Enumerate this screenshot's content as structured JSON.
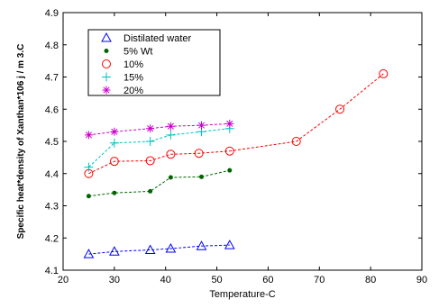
{
  "chart_data": {
    "type": "line",
    "xlabel": "Temperature-C",
    "ylabel": "Specific heat*density of Xanthan*106  j / m 3.C",
    "xlim": [
      20,
      90
    ],
    "ylim": [
      4.1,
      4.9
    ],
    "xticks": [
      "20",
      "30",
      "40",
      "50",
      "60",
      "70",
      "80",
      "90"
    ],
    "yticks": [
      "4.1",
      "4.2",
      "4.3",
      "4.4",
      "4.5",
      "4.6",
      "4.7",
      "4.8",
      "4.9"
    ],
    "grid": false,
    "legend_position": "top-left",
    "series": [
      {
        "name": "Distilated water",
        "color": "#0000ff",
        "marker": "triangle",
        "x": [
          25,
          30,
          37,
          41,
          47,
          52.5
        ],
        "y": [
          4.15,
          4.158,
          4.163,
          4.167,
          4.175,
          4.178
        ]
      },
      {
        "name": "5%  Wt",
        "color": "#006400",
        "marker": "dot",
        "x": [
          25,
          30,
          37,
          41,
          47,
          52.5
        ],
        "y": [
          4.33,
          4.34,
          4.345,
          4.388,
          4.39,
          4.41
        ]
      },
      {
        "name": "10%",
        "color": "#ff0000",
        "marker": "circle",
        "x": [
          25,
          30,
          37,
          41,
          46.5,
          52.5,
          65.5,
          74,
          82.5
        ],
        "y": [
          4.4,
          4.438,
          4.44,
          4.46,
          4.463,
          4.47,
          4.5,
          4.6,
          4.71
        ]
      },
      {
        "name": "15%",
        "color": "#00c0c0",
        "marker": "plus",
        "x": [
          25,
          30,
          37,
          41,
          47,
          52.5
        ],
        "y": [
          4.42,
          4.495,
          4.5,
          4.52,
          4.53,
          4.54
        ]
      },
      {
        "name": "20%",
        "color": "#cc00cc",
        "marker": "star",
        "x": [
          25,
          30,
          37,
          41,
          47,
          52.5
        ],
        "y": [
          4.52,
          4.53,
          4.54,
          4.547,
          4.55,
          4.555
        ]
      }
    ]
  }
}
